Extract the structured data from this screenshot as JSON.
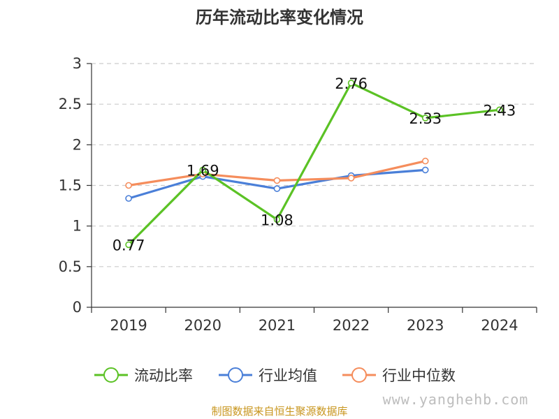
{
  "chart_data": {
    "type": "line",
    "title": "历年流动比率变化情况",
    "categories": [
      "2019",
      "2020",
      "2021",
      "2022",
      "2023",
      "2024"
    ],
    "ylim": [
      0,
      3
    ],
    "yticks": [
      "0",
      "0.5",
      "1",
      "1.5",
      "2",
      "2.5",
      "3"
    ],
    "grid": "horizontal dashed",
    "legend_position": "bottom",
    "series": [
      {
        "name": "流动比率",
        "color": "#5bc225",
        "values": [
          0.77,
          1.69,
          1.08,
          2.76,
          2.33,
          2.43
        ],
        "labels": [
          "0.77",
          "1.69",
          "1.08",
          "2.76",
          "2.33",
          "2.43"
        ]
      },
      {
        "name": "行业均值",
        "color": "#4a7fd8",
        "values": [
          1.34,
          1.61,
          1.46,
          1.62,
          1.69,
          null
        ]
      },
      {
        "name": "行业中位数",
        "color": "#f58d5c",
        "values": [
          1.5,
          1.64,
          1.56,
          1.59,
          1.8,
          null
        ]
      }
    ]
  },
  "source": "制图数据来自恒生聚源数据库",
  "watermark": "www.yanghehb.com"
}
